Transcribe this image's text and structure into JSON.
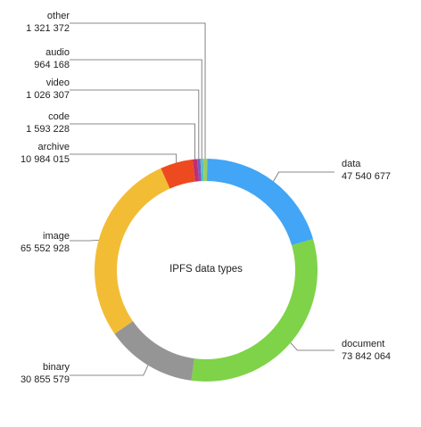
{
  "chart_data": {
    "type": "pie",
    "center_label": "IPFS data types",
    "slices": [
      {
        "name": "data",
        "value": 47540677,
        "value_label": "47 540 677",
        "color": "#42a5f5"
      },
      {
        "name": "document",
        "value": 73842064,
        "value_label": "73 842 064",
        "color": "#7ed348"
      },
      {
        "name": "binary",
        "value": 30855579,
        "value_label": "30 855 579",
        "color": "#959595"
      },
      {
        "name": "image",
        "value": 65552928,
        "value_label": "65 552 928",
        "color": "#f2bd35"
      },
      {
        "name": "archive",
        "value": 10984015,
        "value_label": "10 984 015",
        "color": "#ee4a1f"
      },
      {
        "name": "code",
        "value": 1593228,
        "value_label": "1 593 228",
        "color": "#c0306e"
      },
      {
        "name": "video",
        "value": 1026307,
        "value_label": "1 026 307",
        "color": "#7c58c6"
      },
      {
        "name": "audio",
        "value": 964168,
        "value_label": "964 168",
        "color": "#4fc7c0"
      },
      {
        "name": "other",
        "value": 1321372,
        "value_label": "1 321 372",
        "color": "#9ccc65"
      }
    ]
  }
}
